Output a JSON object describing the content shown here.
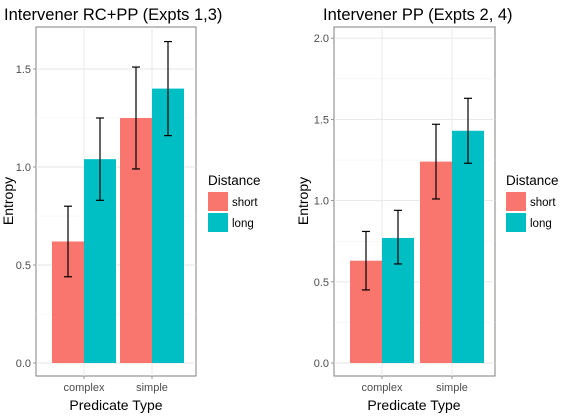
{
  "chart_data": [
    {
      "type": "bar",
      "title": "Intervener RC+PP (Expts 1,3)",
      "xlabel": "Predicate Type",
      "ylabel": "Entropy",
      "categories": [
        "complex",
        "simple"
      ],
      "ylim": [
        0,
        1.75
      ],
      "yticks": [
        "0.0",
        "0.5",
        "1.0",
        "1.5"
      ],
      "series": [
        {
          "name": "short",
          "color": "#f8766d",
          "values": [
            0.62,
            1.25
          ],
          "error_low": [
            0.44,
            0.99
          ],
          "error_high": [
            0.8,
            1.51
          ]
        },
        {
          "name": "long",
          "color": "#00bfc4",
          "values": [
            1.04,
            1.4
          ],
          "error_low": [
            0.83,
            1.16
          ],
          "error_high": [
            1.25,
            1.64
          ]
        }
      ],
      "legend": {
        "title": "Distance",
        "position": "right"
      },
      "grid": true
    },
    {
      "type": "bar",
      "title": "Intervener PP (Expts 2, 4)",
      "xlabel": "Predicate Type",
      "ylabel": "Entropy",
      "categories": [
        "complex",
        "simple"
      ],
      "ylim": [
        0,
        2.07
      ],
      "yticks": [
        "0.0",
        "0.5",
        "1.0",
        "1.5",
        "2.0"
      ],
      "series": [
        {
          "name": "short",
          "color": "#f8766d",
          "values": [
            0.63,
            1.24
          ],
          "error_low": [
            0.45,
            1.01
          ],
          "error_high": [
            0.81,
            1.47
          ]
        },
        {
          "name": "long",
          "color": "#00bfc4",
          "values": [
            0.77,
            1.43
          ],
          "error_low": [
            0.61,
            1.23
          ],
          "error_high": [
            0.94,
            1.63
          ]
        }
      ],
      "legend": {
        "title": "Distance",
        "position": "right"
      },
      "grid": true
    }
  ]
}
